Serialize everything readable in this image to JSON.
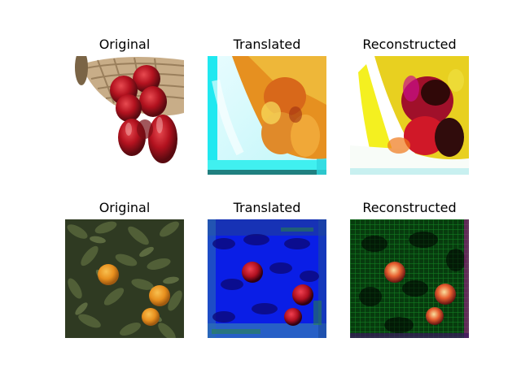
{
  "figure": {
    "rows": [
      {
        "subject": "apples-in-basket",
        "panels": [
          {
            "title": "Original"
          },
          {
            "title": "Translated"
          },
          {
            "title": "Reconstructed"
          }
        ]
      },
      {
        "subject": "oranges-on-tree",
        "panels": [
          {
            "title": "Original"
          },
          {
            "title": "Translated"
          },
          {
            "title": "Reconstructed"
          }
        ]
      }
    ]
  },
  "palette": {
    "background": "#ffffff",
    "apple_red": "#b3121f",
    "basket_tan": "#c8ad88",
    "translated_cyan": "#20e8f0",
    "translated_orange": "#e69020",
    "recon_yellow": "#f4f020",
    "leaf_green": "#3a4a2a",
    "orange_fruit": "#e8901e",
    "translated_blue": "#0a1ee6",
    "recon_green": "#0c7a1a"
  }
}
